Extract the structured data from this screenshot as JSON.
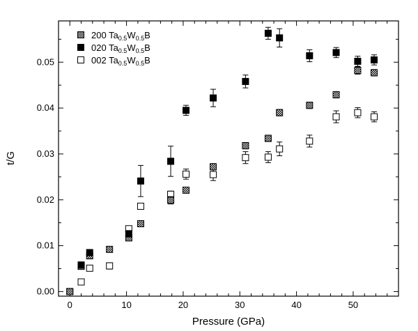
{
  "chart_data": {
    "type": "scatter",
    "xlabel": "Pressure (GPa)",
    "ylabel": "t/G",
    "xlim": [
      -2,
      58
    ],
    "ylim": [
      -0.001,
      0.059
    ],
    "x_ticks": [
      0,
      10,
      20,
      30,
      40,
      50
    ],
    "y_ticks": [
      0.0,
      0.01,
      0.02,
      0.03,
      0.04,
      0.05
    ],
    "y_tick_labels": [
      "0.00",
      "0.01",
      "0.02",
      "0.03",
      "0.04",
      "0.05"
    ],
    "legend_position": "top-left",
    "series": [
      {
        "name_parts": [
          "200 Ta",
          "0.5",
          "W",
          "0.5",
          "B"
        ],
        "marker": "hatched-square",
        "points": [
          {
            "x": 0,
            "y": 0.0,
            "err": 0.0003
          },
          {
            "x": 2,
            "y": 0.0055,
            "err": 0.0006
          },
          {
            "x": 3.5,
            "y": 0.0078,
            "err": 0.0006
          },
          {
            "x": 7,
            "y": 0.0092,
            "err": 0.0006
          },
          {
            "x": 10.4,
            "y": 0.0117,
            "err": 0.0006
          },
          {
            "x": 12.5,
            "y": 0.0148,
            "err": 0.0006
          },
          {
            "x": 17.8,
            "y": 0.0199,
            "err": 0.0008
          },
          {
            "x": 20.5,
            "y": 0.0221,
            "err": 0.0006
          },
          {
            "x": 25.3,
            "y": 0.0272,
            "err": 0.0007
          },
          {
            "x": 31,
            "y": 0.0318,
            "err": 0.0007
          },
          {
            "x": 35,
            "y": 0.0334,
            "err": 0.0007
          },
          {
            "x": 37,
            "y": 0.039,
            "err": 0.0007
          },
          {
            "x": 42.3,
            "y": 0.0406,
            "err": 0.0007
          },
          {
            "x": 47,
            "y": 0.0429,
            "err": 0.0007
          },
          {
            "x": 50.8,
            "y": 0.0482,
            "err": 0.0008
          },
          {
            "x": 53.7,
            "y": 0.0477,
            "err": 0.0007
          }
        ]
      },
      {
        "name_parts": [
          "020 Ta",
          "0.5",
          "W",
          "0.5",
          "B"
        ],
        "marker": "filled-square",
        "points": [
          {
            "x": 2,
            "y": 0.0058,
            "err": 0.0005
          },
          {
            "x": 3.5,
            "y": 0.0085,
            "err": 0.0005
          },
          {
            "x": 10.4,
            "y": 0.0126,
            "err": 0.0007
          },
          {
            "x": 12.5,
            "y": 0.0241,
            "err": 0.0034
          },
          {
            "x": 17.8,
            "y": 0.0284,
            "err": 0.0033
          },
          {
            "x": 20.5,
            "y": 0.0395,
            "err": 0.0011
          },
          {
            "x": 25.3,
            "y": 0.0422,
            "err": 0.0019
          },
          {
            "x": 31,
            "y": 0.0458,
            "err": 0.0014
          },
          {
            "x": 35,
            "y": 0.0563,
            "err": 0.0013
          },
          {
            "x": 37,
            "y": 0.0553,
            "err": 0.002
          },
          {
            "x": 42.3,
            "y": 0.0514,
            "err": 0.0013
          },
          {
            "x": 47,
            "y": 0.0521,
            "err": 0.0011
          },
          {
            "x": 50.8,
            "y": 0.0502,
            "err": 0.0011
          },
          {
            "x": 53.7,
            "y": 0.0505,
            "err": 0.0011
          }
        ]
      },
      {
        "name_parts": [
          "002 Ta",
          "0.5",
          "W",
          "0.5",
          "B"
        ],
        "marker": "open-square",
        "points": [
          {
            "x": 0,
            "y": 0.0,
            "err": 0.0003
          },
          {
            "x": 2,
            "y": 0.0021,
            "err": 0.0006
          },
          {
            "x": 3.5,
            "y": 0.0051,
            "err": 0.0006
          },
          {
            "x": 7,
            "y": 0.0056,
            "err": 0.0007
          },
          {
            "x": 10.4,
            "y": 0.0137,
            "err": 0.0006
          },
          {
            "x": 12.5,
            "y": 0.0186,
            "err": 0.0006
          },
          {
            "x": 17.8,
            "y": 0.0212,
            "err": 0.0007
          },
          {
            "x": 20.5,
            "y": 0.0256,
            "err": 0.0011
          },
          {
            "x": 25.3,
            "y": 0.0255,
            "err": 0.0013
          },
          {
            "x": 31,
            "y": 0.0292,
            "err": 0.0013
          },
          {
            "x": 35,
            "y": 0.0293,
            "err": 0.0012
          },
          {
            "x": 37,
            "y": 0.0311,
            "err": 0.0015
          },
          {
            "x": 42.3,
            "y": 0.0328,
            "err": 0.0013
          },
          {
            "x": 47,
            "y": 0.0381,
            "err": 0.0013
          },
          {
            "x": 50.8,
            "y": 0.039,
            "err": 0.0011
          },
          {
            "x": 53.7,
            "y": 0.0381,
            "err": 0.0011
          }
        ]
      }
    ]
  }
}
